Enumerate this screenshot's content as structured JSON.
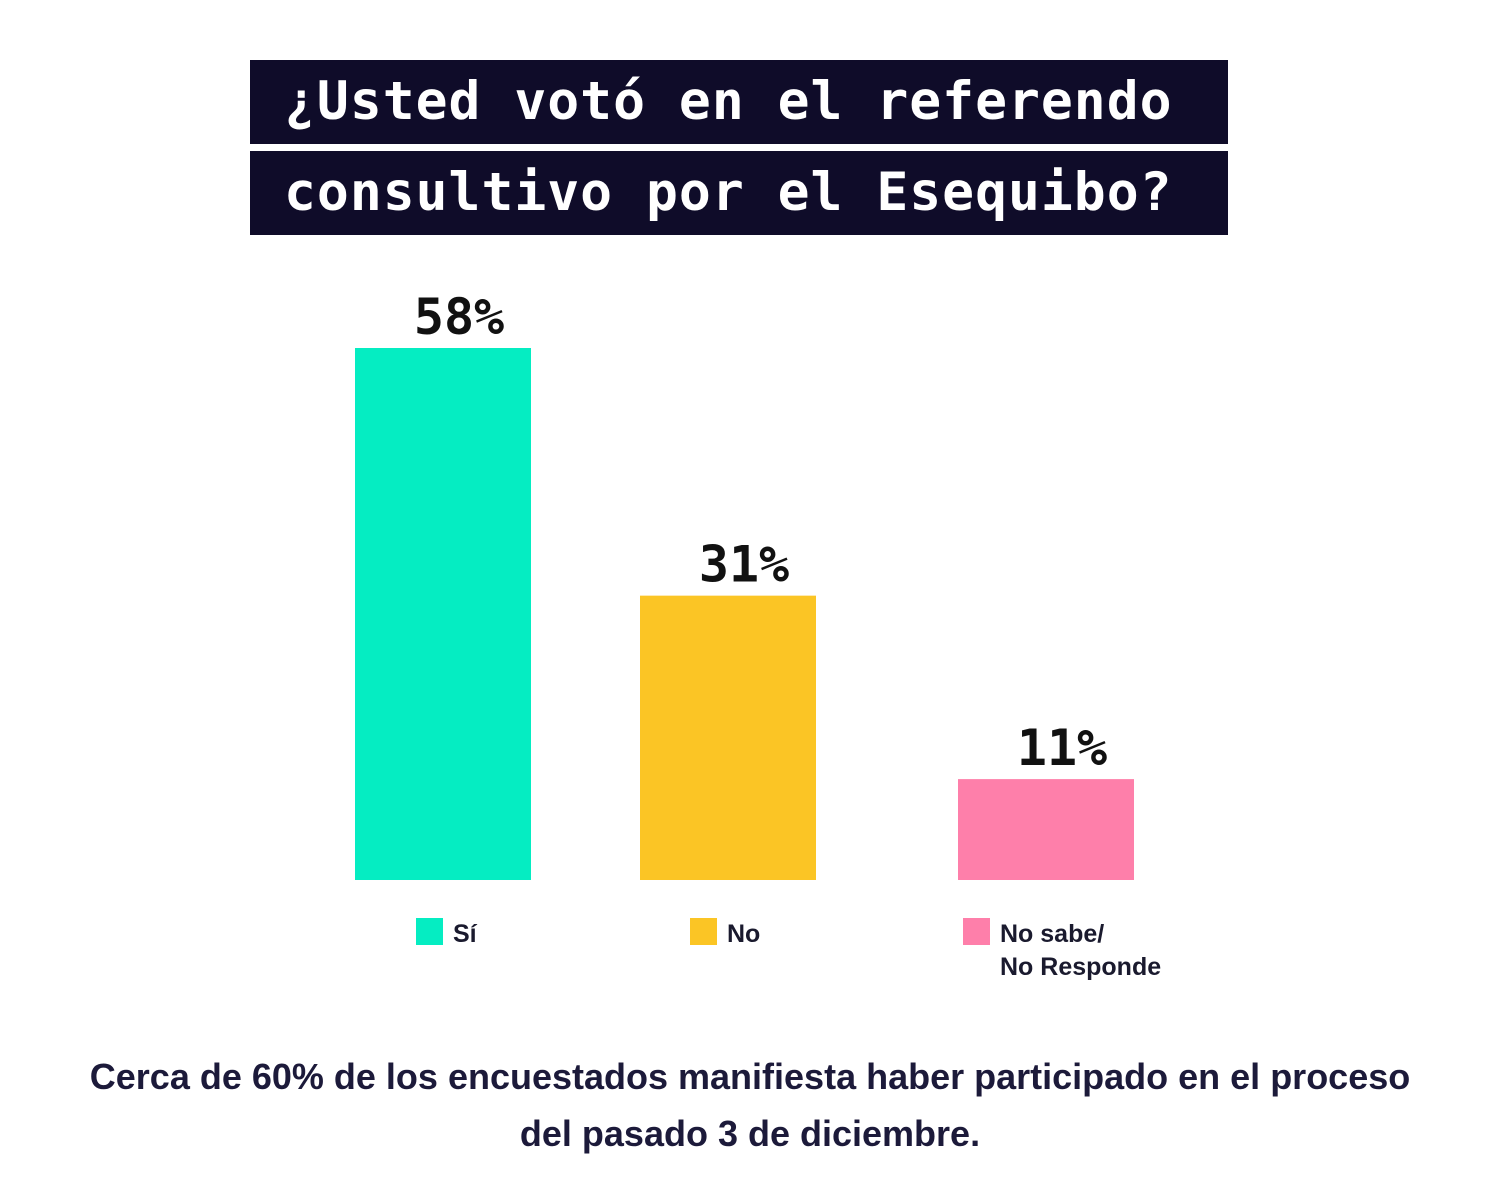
{
  "title": {
    "line1": "¿Usted votó en el referendo",
    "line2": "consultivo por el Esequibo?"
  },
  "chart_data": {
    "type": "bar",
    "categories": [
      "Sí",
      "No",
      "No sabe/ No Responde"
    ],
    "values": [
      58,
      31,
      11
    ],
    "value_labels": [
      "58%",
      "31%",
      "11%"
    ],
    "colors": [
      "#05edc2",
      "#fbc525",
      "#fe7faa"
    ],
    "legend": [
      {
        "lines": [
          "Sí"
        ],
        "color": "#05edc2"
      },
      {
        "lines": [
          "No"
        ],
        "color": "#fbc525"
      },
      {
        "lines": [
          "No sabe/",
          "No Responde"
        ],
        "color": "#fe7faa"
      }
    ],
    "unit": "%",
    "legend_position": "bottom",
    "grid": false
  },
  "caption": {
    "line1": "Cerca de 60% de los encuestados manifiesta haber participado en el proceso",
    "line2": "del pasado 3 de diciembre."
  }
}
